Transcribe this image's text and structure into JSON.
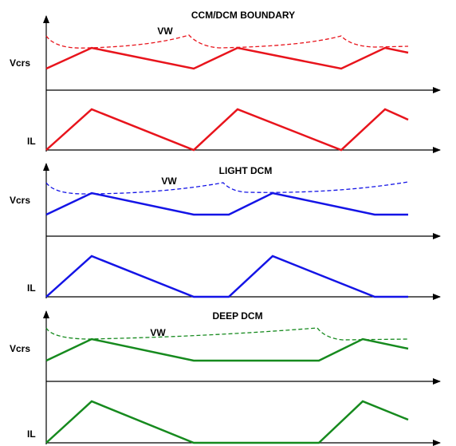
{
  "panels": [
    {
      "title": "CCM/DCM BOUNDARY",
      "vw_label": "VW",
      "vcrs_label": "Vcrs",
      "il_label": "IL"
    },
    {
      "title": "LIGHT DCM",
      "vw_label": "VW",
      "vcrs_label": "Vcrs",
      "il_label": "IL"
    },
    {
      "title": "DEEP DCM",
      "vw_label": "VW",
      "vcrs_label": "Vcrs",
      "il_label": "IL"
    }
  ]
}
